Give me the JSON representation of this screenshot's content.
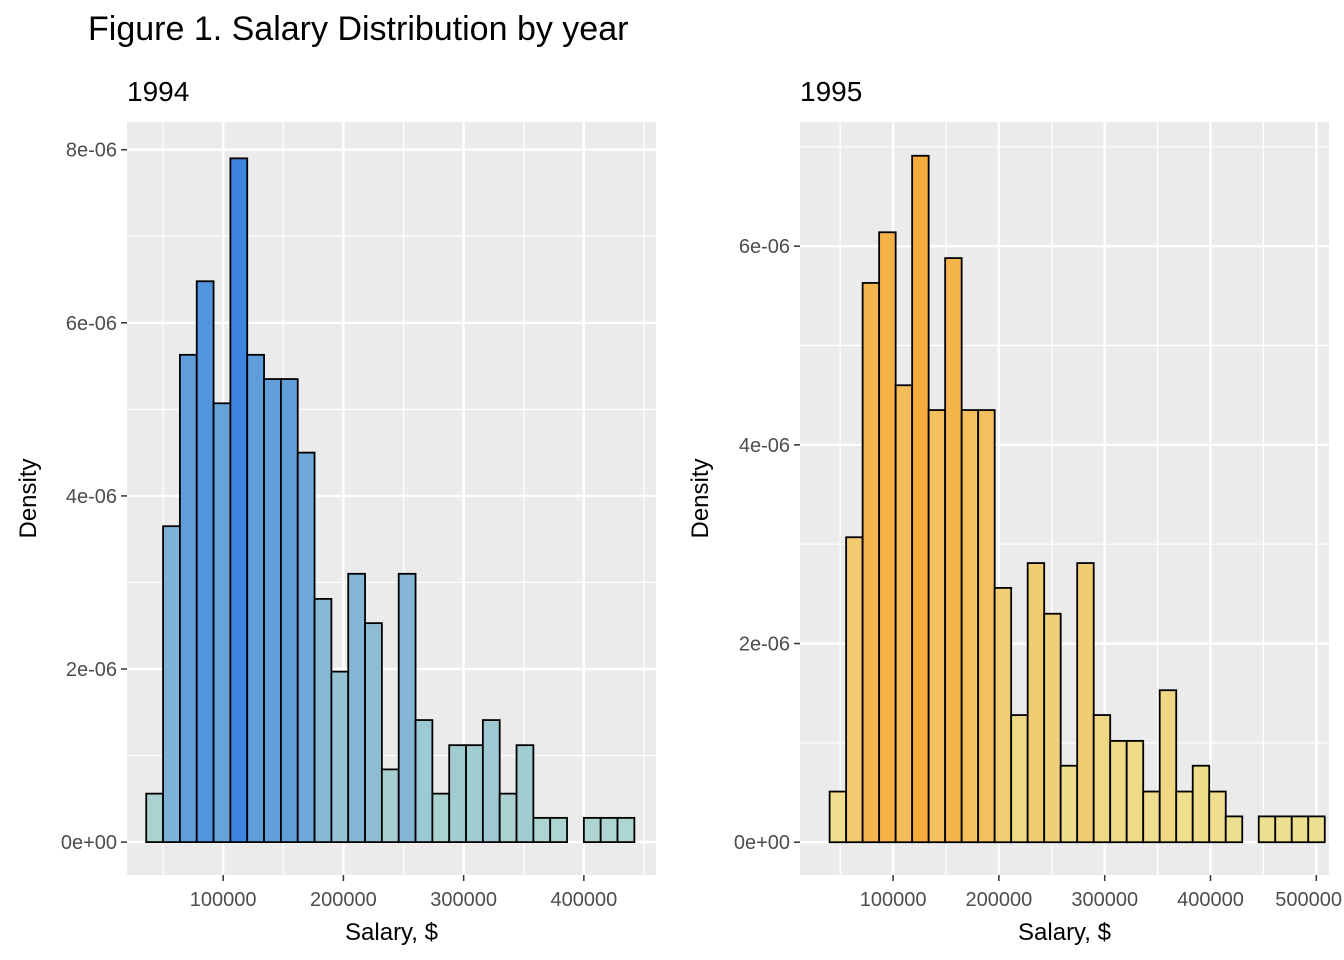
{
  "figure": {
    "title": "Figure 1. Salary Distribution by year"
  },
  "chart_data": [
    {
      "type": "bar",
      "subtype": "histogram",
      "title": "1994",
      "xlabel": "Salary, $",
      "ylabel": "Density",
      "xlim": [
        20000,
        460000
      ],
      "ylim": [
        -3.8e-07,
        8.32e-06
      ],
      "x_ticks": [
        100000,
        200000,
        300000,
        400000
      ],
      "y_ticks": [
        0,
        2e-06,
        4e-06,
        6e-06,
        8e-06
      ],
      "x_tick_labels": [
        "100000",
        "200000",
        "300000",
        "400000"
      ],
      "y_tick_labels": [
        "0e+00",
        "2e-06",
        "4e-06",
        "6e-06",
        "8e-06"
      ],
      "bin_start": 36000,
      "bin_width": 14000,
      "values": [
        5.6e-07,
        3.65e-06,
        5.63e-06,
        6.48e-06,
        5.07e-06,
        7.9e-06,
        5.63e-06,
        5.35e-06,
        5.35e-06,
        4.5e-06,
        2.81e-06,
        1.97e-06,
        3.1e-06,
        2.53e-06,
        8.4e-07,
        3.1e-06,
        1.41e-06,
        5.6e-07,
        1.12e-06,
        1.12e-06,
        1.41e-06,
        5.6e-07,
        1.12e-06,
        2.8e-07,
        2.8e-07,
        0,
        2.8e-07,
        2.8e-07,
        2.8e-07
      ],
      "colors": {
        "low": "#b2d8d0",
        "high": "#3d85e0",
        "panel_bg": "#ebebeb",
        "grid": "#ffffff",
        "outline": "#000000"
      },
      "grid": true,
      "legend": "none"
    },
    {
      "type": "bar",
      "subtype": "histogram",
      "title": "1995",
      "xlabel": "Salary, $",
      "ylabel": "Density",
      "xlim": [
        12000,
        512000
      ],
      "ylim": [
        -3.3e-07,
        7.25e-06
      ],
      "x_ticks": [
        100000,
        200000,
        300000,
        400000,
        500000
      ],
      "y_ticks": [
        0,
        2e-06,
        4e-06,
        6e-06
      ],
      "x_tick_labels": [
        "100000",
        "200000",
        "300000",
        "400000",
        "500000"
      ],
      "y_tick_labels": [
        "0e+00",
        "2e-06",
        "4e-06",
        "6e-06"
      ],
      "bin_start": 40000,
      "bin_width": 15600,
      "values": [
        5.1e-07,
        3.07e-06,
        5.63e-06,
        6.14e-06,
        4.6e-06,
        6.91e-06,
        4.35e-06,
        5.88e-06,
        4.35e-06,
        4.35e-06,
        2.56e-06,
        1.28e-06,
        2.81e-06,
        2.3e-06,
        7.7e-07,
        2.81e-06,
        1.28e-06,
        1.02e-06,
        1.02e-06,
        5.1e-07,
        1.53e-06,
        5.1e-07,
        7.7e-07,
        5.1e-07,
        2.6e-07,
        0,
        2.6e-07,
        2.6e-07,
        2.6e-07,
        2.6e-07
      ],
      "colors": {
        "low": "#ede294",
        "high": "#f6ac3c",
        "panel_bg": "#ebebeb",
        "grid": "#ffffff",
        "outline": "#000000"
      },
      "grid": true,
      "legend": "none"
    }
  ]
}
